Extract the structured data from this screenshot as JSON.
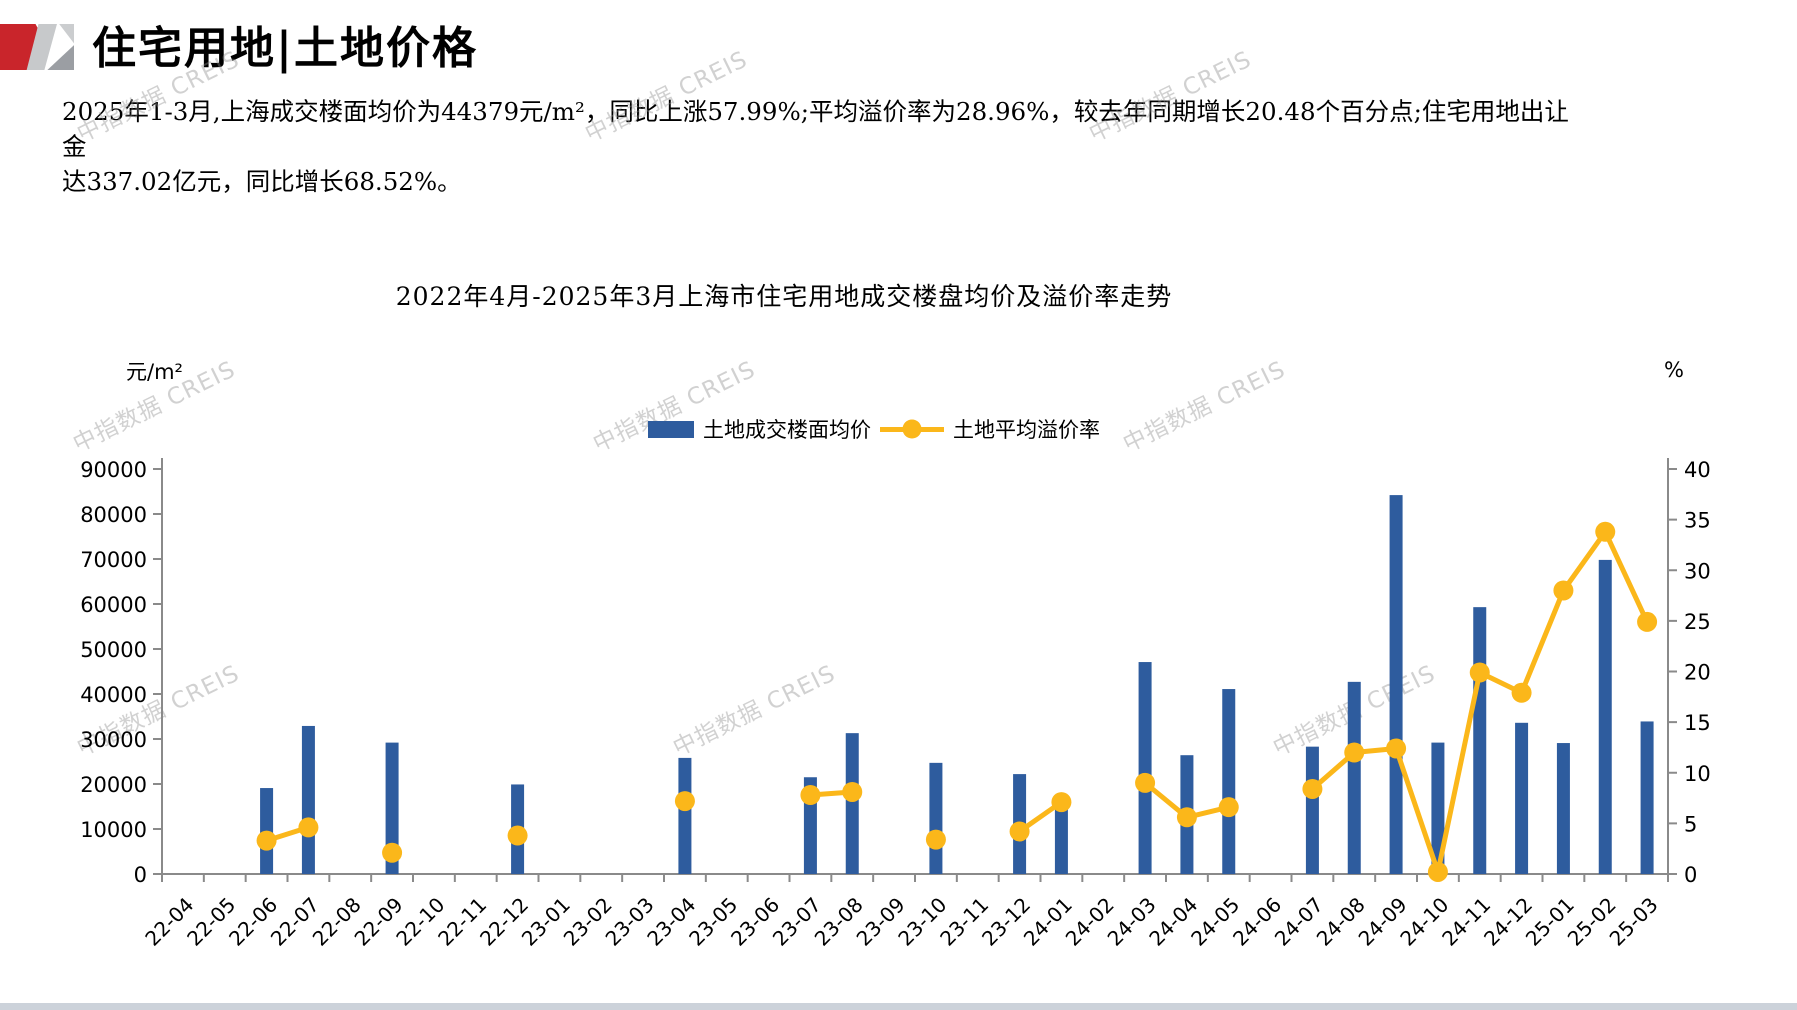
{
  "header": {
    "title": "住宅用地|土地价格"
  },
  "summary": {
    "lines": [
      "2025年1-3月,上海成交楼面均价为44379元/m²，同比上涨57.99%;平均溢价率为28.96%，较去年同期增长20.48个百分点;住宅用地出让金",
      "达337.02亿元，同比增长68.52%。"
    ]
  },
  "watermark": {
    "text": "中指数据 CREIS"
  },
  "chart_data": {
    "type": "bar+line",
    "title": "2022年4月-2025年3月上海市住宅用地成交楼盘均价及溢价率走势",
    "left_axis": {
      "unit": "元/m²",
      "min": 0,
      "max": 90000,
      "step": 10000
    },
    "right_axis": {
      "unit": "%",
      "min": 0,
      "max": 40,
      "step": 5
    },
    "grid": false,
    "legend_position": "top",
    "categories": [
      "22-04",
      "22-05",
      "22-06",
      "22-07",
      "22-08",
      "22-09",
      "22-10",
      "22-11",
      "22-12",
      "23-01",
      "23-02",
      "23-03",
      "23-04",
      "23-05",
      "23-06",
      "23-07",
      "23-08",
      "23-09",
      "23-10",
      "23-11",
      "23-12",
      "24-01",
      "24-02",
      "24-03",
      "24-04",
      "24-05",
      "24-06",
      "24-07",
      "24-08",
      "24-09",
      "24-10",
      "24-11",
      "24-12",
      "25-01",
      "25-02",
      "25-03"
    ],
    "series": [
      {
        "name": "土地成交楼面均价",
        "type": "bar",
        "axis": "left",
        "color": "#2e5c9e",
        "values": [
          null,
          null,
          19100,
          32900,
          null,
          29200,
          null,
          null,
          19900,
          null,
          null,
          null,
          25800,
          null,
          null,
          21500,
          31300,
          null,
          24700,
          null,
          22200,
          15500,
          null,
          47100,
          26400,
          41100,
          null,
          28300,
          42700,
          84200,
          29200,
          59300,
          33600,
          29100,
          69800,
          33900
        ]
      },
      {
        "name": "土地平均溢价率",
        "type": "line",
        "axis": "right",
        "color": "#fbb71a",
        "values": [
          null,
          null,
          3.3,
          4.6,
          null,
          2.1,
          null,
          null,
          3.8,
          null,
          null,
          null,
          7.2,
          null,
          null,
          7.8,
          8.1,
          null,
          3.4,
          null,
          4.2,
          7.1,
          null,
          9.0,
          5.6,
          6.6,
          null,
          8.4,
          12.0,
          12.4,
          0.2,
          19.9,
          17.9,
          28.0,
          33.8,
          24.9
        ]
      }
    ]
  }
}
